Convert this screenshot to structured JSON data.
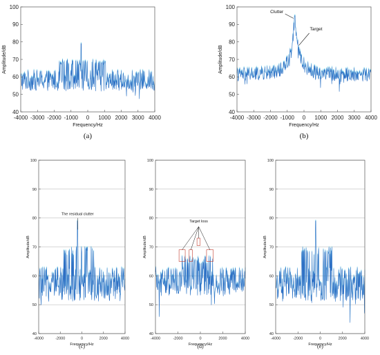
{
  "chart_data": [
    {
      "type": "line",
      "panel_label": "(a)",
      "xlabel": "Frequency/Hz",
      "ylabel": "Amplitude/dB",
      "xlim": [
        -4000,
        4000
      ],
      "ylim": [
        40,
        100
      ],
      "xticks": [
        "-4000",
        "-3000",
        "-2000",
        "-1000",
        "0",
        "1000",
        "2000",
        "3000",
        "4000"
      ],
      "yticks": [
        "40",
        "50",
        "60",
        "70",
        "80",
        "90",
        "100"
      ],
      "grid": false,
      "series": [
        {
          "noise_floor_db": 58,
          "noise_spread_db": 6,
          "band_hz": [
            -1700,
            1100
          ],
          "band_level_db": 70,
          "peaks": [
            {
              "x": -400,
              "y": 79
            }
          ]
        }
      ],
      "annotations": []
    },
    {
      "type": "line",
      "panel_label": "(b)",
      "xlabel": "Frequency/Hz",
      "ylabel": "Amplitude/dB",
      "xlim": [
        -4000,
        4000
      ],
      "ylim": [
        40,
        100
      ],
      "xticks": [
        "-4000",
        "-3000",
        "-2000",
        "-1000",
        "0",
        "1000",
        "2000",
        "3000",
        "4000"
      ],
      "yticks": [
        "40",
        "50",
        "60",
        "70",
        "80",
        "90",
        "100"
      ],
      "grid": false,
      "series": [
        {
          "noise_floor_db": 61,
          "noise_spread_db": 4,
          "peak_hz": -550,
          "peak_db": 95,
          "target_hz": -450,
          "target_db": 78
        }
      ],
      "annotations": [
        {
          "text": "Clutter",
          "x": -550,
          "y": 94
        },
        {
          "text": "Target",
          "x": -430,
          "y": 78
        }
      ]
    },
    {
      "type": "line",
      "panel_label": "(c)",
      "xlabel": "Frequency/Hz",
      "ylabel": "Amplitude/dB",
      "xlim": [
        -4000,
        4000
      ],
      "ylim": [
        40,
        100
      ],
      "xticks": [
        "-4000",
        "-2000",
        "0",
        "2000",
        "4000"
      ],
      "yticks": [
        "40",
        "50",
        "60",
        "70",
        "80",
        "90",
        "100"
      ],
      "grid": true,
      "series": [
        {
          "noise_floor_db": 57,
          "noise_spread_db": 6,
          "band_hz": [
            -1700,
            1100
          ],
          "band_level_db": 70,
          "peaks": [
            {
              "x": -400,
              "y": 79
            }
          ]
        }
      ],
      "annotations": [
        {
          "text": "The residual clutter",
          "x": -400,
          "y": 77
        }
      ]
    },
    {
      "type": "line",
      "panel_label": "(d)",
      "xlabel": "Frequency/Hz",
      "ylabel": "Amplitude/dB",
      "xlim": [
        -4000,
        4000
      ],
      "ylim": [
        40,
        100
      ],
      "xticks": [
        "-4000",
        "-2000",
        "0",
        "2000",
        "4000"
      ],
      "yticks": [
        "40",
        "50",
        "60",
        "70",
        "80",
        "90",
        "100"
      ],
      "grid": true,
      "series": [
        {
          "noise_floor_db": 58,
          "noise_spread_db": 5,
          "band_hz": [
            -1700,
            1100
          ],
          "band_level_db": 67
        }
      ],
      "annotations": [
        {
          "text": "Target loss",
          "x": -300,
          "y": 76
        }
      ],
      "highlight_boxes_hz": [
        [
          -1900,
          -1350
        ],
        [
          -1000,
          -700
        ],
        [
          -300,
          -20
        ],
        [
          550,
          1150
        ]
      ]
    },
    {
      "type": "line",
      "panel_label": "(e)",
      "xlabel": "Frequency/Hz",
      "ylabel": "Amplitude/dB",
      "xlim": [
        -4000,
        4000
      ],
      "ylim": [
        40,
        100
      ],
      "xticks": [
        "-4000",
        "-2000",
        "0",
        "2000",
        "4000"
      ],
      "yticks": [
        "40",
        "50",
        "60",
        "70",
        "80",
        "90",
        "100"
      ],
      "grid": true,
      "series": [
        {
          "noise_floor_db": 57,
          "noise_spread_db": 6,
          "band_hz": [
            -1700,
            1100
          ],
          "band_level_db": 70,
          "peaks": [
            {
              "x": -400,
              "y": 79
            }
          ]
        }
      ],
      "annotations": []
    }
  ],
  "colors": {
    "signal": "#2e6fc4",
    "signal_light": "#5fd0e8",
    "axis": "#555555",
    "grid": "#9a9a9a",
    "highlight": "#c0392b"
  }
}
